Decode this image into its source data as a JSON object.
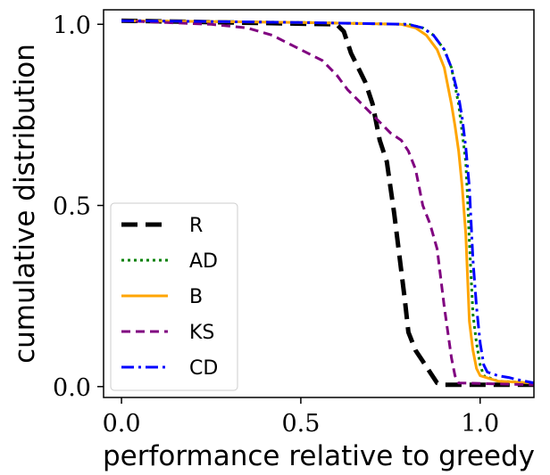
{
  "chart_data": {
    "type": "line",
    "xlabel": "performance relative to greedy",
    "ylabel": "cumulative distribution",
    "xlim": [
      -0.05,
      1.15
    ],
    "ylim": [
      -0.03,
      1.04
    ],
    "x_ticks": [
      {
        "value": 0.0,
        "label": "0.0"
      },
      {
        "value": 0.5,
        "label": "0.5"
      },
      {
        "value": 1.0,
        "label": "1.0"
      }
    ],
    "y_ticks": [
      {
        "value": 0.0,
        "label": "0.0"
      },
      {
        "value": 0.5,
        "label": "0.5"
      },
      {
        "value": 1.0,
        "label": "1.0"
      }
    ],
    "grid": false,
    "legend_position": "bottom-left",
    "series": [
      {
        "name": "R",
        "color": "#000000",
        "dash": "18,9",
        "width": 5,
        "points": [
          [
            0.0,
            1.01
          ],
          [
            0.3,
            1.005
          ],
          [
            0.6,
            1.0
          ],
          [
            0.62,
            0.98
          ],
          [
            0.64,
            0.92
          ],
          [
            0.66,
            0.88
          ],
          [
            0.68,
            0.84
          ],
          [
            0.7,
            0.78
          ],
          [
            0.72,
            0.68
          ],
          [
            0.74,
            0.62
          ],
          [
            0.75,
            0.55
          ],
          [
            0.76,
            0.48
          ],
          [
            0.77,
            0.4
          ],
          [
            0.78,
            0.32
          ],
          [
            0.79,
            0.24
          ],
          [
            0.8,
            0.15
          ],
          [
            0.82,
            0.1
          ],
          [
            0.84,
            0.07
          ],
          [
            0.86,
            0.04
          ],
          [
            0.88,
            0.01
          ],
          [
            0.9,
            0.005
          ],
          [
            1.15,
            0.005
          ]
        ]
      },
      {
        "name": "AD",
        "color": "#008000",
        "dash": "3,4",
        "width": 3,
        "points": [
          [
            0.0,
            1.01
          ],
          [
            0.5,
            1.005
          ],
          [
            0.8,
            1.0
          ],
          [
            0.84,
            0.99
          ],
          [
            0.87,
            0.97
          ],
          [
            0.9,
            0.93
          ],
          [
            0.92,
            0.88
          ],
          [
            0.93,
            0.83
          ],
          [
            0.94,
            0.78
          ],
          [
            0.95,
            0.7
          ],
          [
            0.96,
            0.62
          ],
          [
            0.965,
            0.52
          ],
          [
            0.97,
            0.4
          ],
          [
            0.975,
            0.3
          ],
          [
            0.98,
            0.2
          ],
          [
            0.99,
            0.12
          ],
          [
            1.0,
            0.06
          ],
          [
            1.01,
            0.03
          ],
          [
            1.05,
            0.015
          ],
          [
            1.15,
            0.01
          ]
        ]
      },
      {
        "name": "B",
        "color": "#FFA500",
        "dash": "",
        "width": 3,
        "points": [
          [
            0.0,
            1.01
          ],
          [
            0.5,
            1.005
          ],
          [
            0.78,
            1.0
          ],
          [
            0.82,
            0.99
          ],
          [
            0.85,
            0.97
          ],
          [
            0.88,
            0.93
          ],
          [
            0.9,
            0.88
          ],
          [
            0.91,
            0.83
          ],
          [
            0.92,
            0.78
          ],
          [
            0.93,
            0.72
          ],
          [
            0.94,
            0.65
          ],
          [
            0.95,
            0.55
          ],
          [
            0.96,
            0.42
          ],
          [
            0.965,
            0.3
          ],
          [
            0.97,
            0.18
          ],
          [
            0.98,
            0.1
          ],
          [
            0.99,
            0.05
          ],
          [
            1.0,
            0.03
          ],
          [
            1.05,
            0.015
          ],
          [
            1.15,
            0.01
          ]
        ]
      },
      {
        "name": "KS",
        "color": "#800080",
        "dash": "10,6",
        "width": 3,
        "points": [
          [
            0.0,
            1.01
          ],
          [
            0.25,
            1.0
          ],
          [
            0.35,
            0.99
          ],
          [
            0.42,
            0.97
          ],
          [
            0.48,
            0.94
          ],
          [
            0.52,
            0.92
          ],
          [
            0.56,
            0.9
          ],
          [
            0.6,
            0.86
          ],
          [
            0.63,
            0.82
          ],
          [
            0.66,
            0.79
          ],
          [
            0.69,
            0.76
          ],
          [
            0.72,
            0.73
          ],
          [
            0.75,
            0.7
          ],
          [
            0.78,
            0.68
          ],
          [
            0.8,
            0.65
          ],
          [
            0.82,
            0.6
          ],
          [
            0.83,
            0.55
          ],
          [
            0.84,
            0.5
          ],
          [
            0.86,
            0.45
          ],
          [
            0.88,
            0.38
          ],
          [
            0.89,
            0.3
          ],
          [
            0.9,
            0.22
          ],
          [
            0.91,
            0.15
          ],
          [
            0.92,
            0.08
          ],
          [
            0.93,
            0.03
          ],
          [
            0.94,
            0.01
          ],
          [
            1.15,
            0.005
          ]
        ]
      },
      {
        "name": "CD",
        "color": "#0000FF",
        "dash": "14,5,3,5",
        "width": 3,
        "points": [
          [
            0.0,
            1.01
          ],
          [
            0.5,
            1.005
          ],
          [
            0.8,
            1.0
          ],
          [
            0.84,
            0.99
          ],
          [
            0.87,
            0.97
          ],
          [
            0.9,
            0.93
          ],
          [
            0.92,
            0.88
          ],
          [
            0.93,
            0.84
          ],
          [
            0.94,
            0.8
          ],
          [
            0.95,
            0.74
          ],
          [
            0.96,
            0.66
          ],
          [
            0.97,
            0.55
          ],
          [
            0.975,
            0.45
          ],
          [
            0.98,
            0.35
          ],
          [
            0.99,
            0.22
          ],
          [
            1.0,
            0.12
          ],
          [
            1.01,
            0.06
          ],
          [
            1.02,
            0.04
          ],
          [
            1.05,
            0.03
          ],
          [
            1.08,
            0.025
          ],
          [
            1.1,
            0.02
          ],
          [
            1.15,
            0.01
          ]
        ]
      }
    ]
  }
}
